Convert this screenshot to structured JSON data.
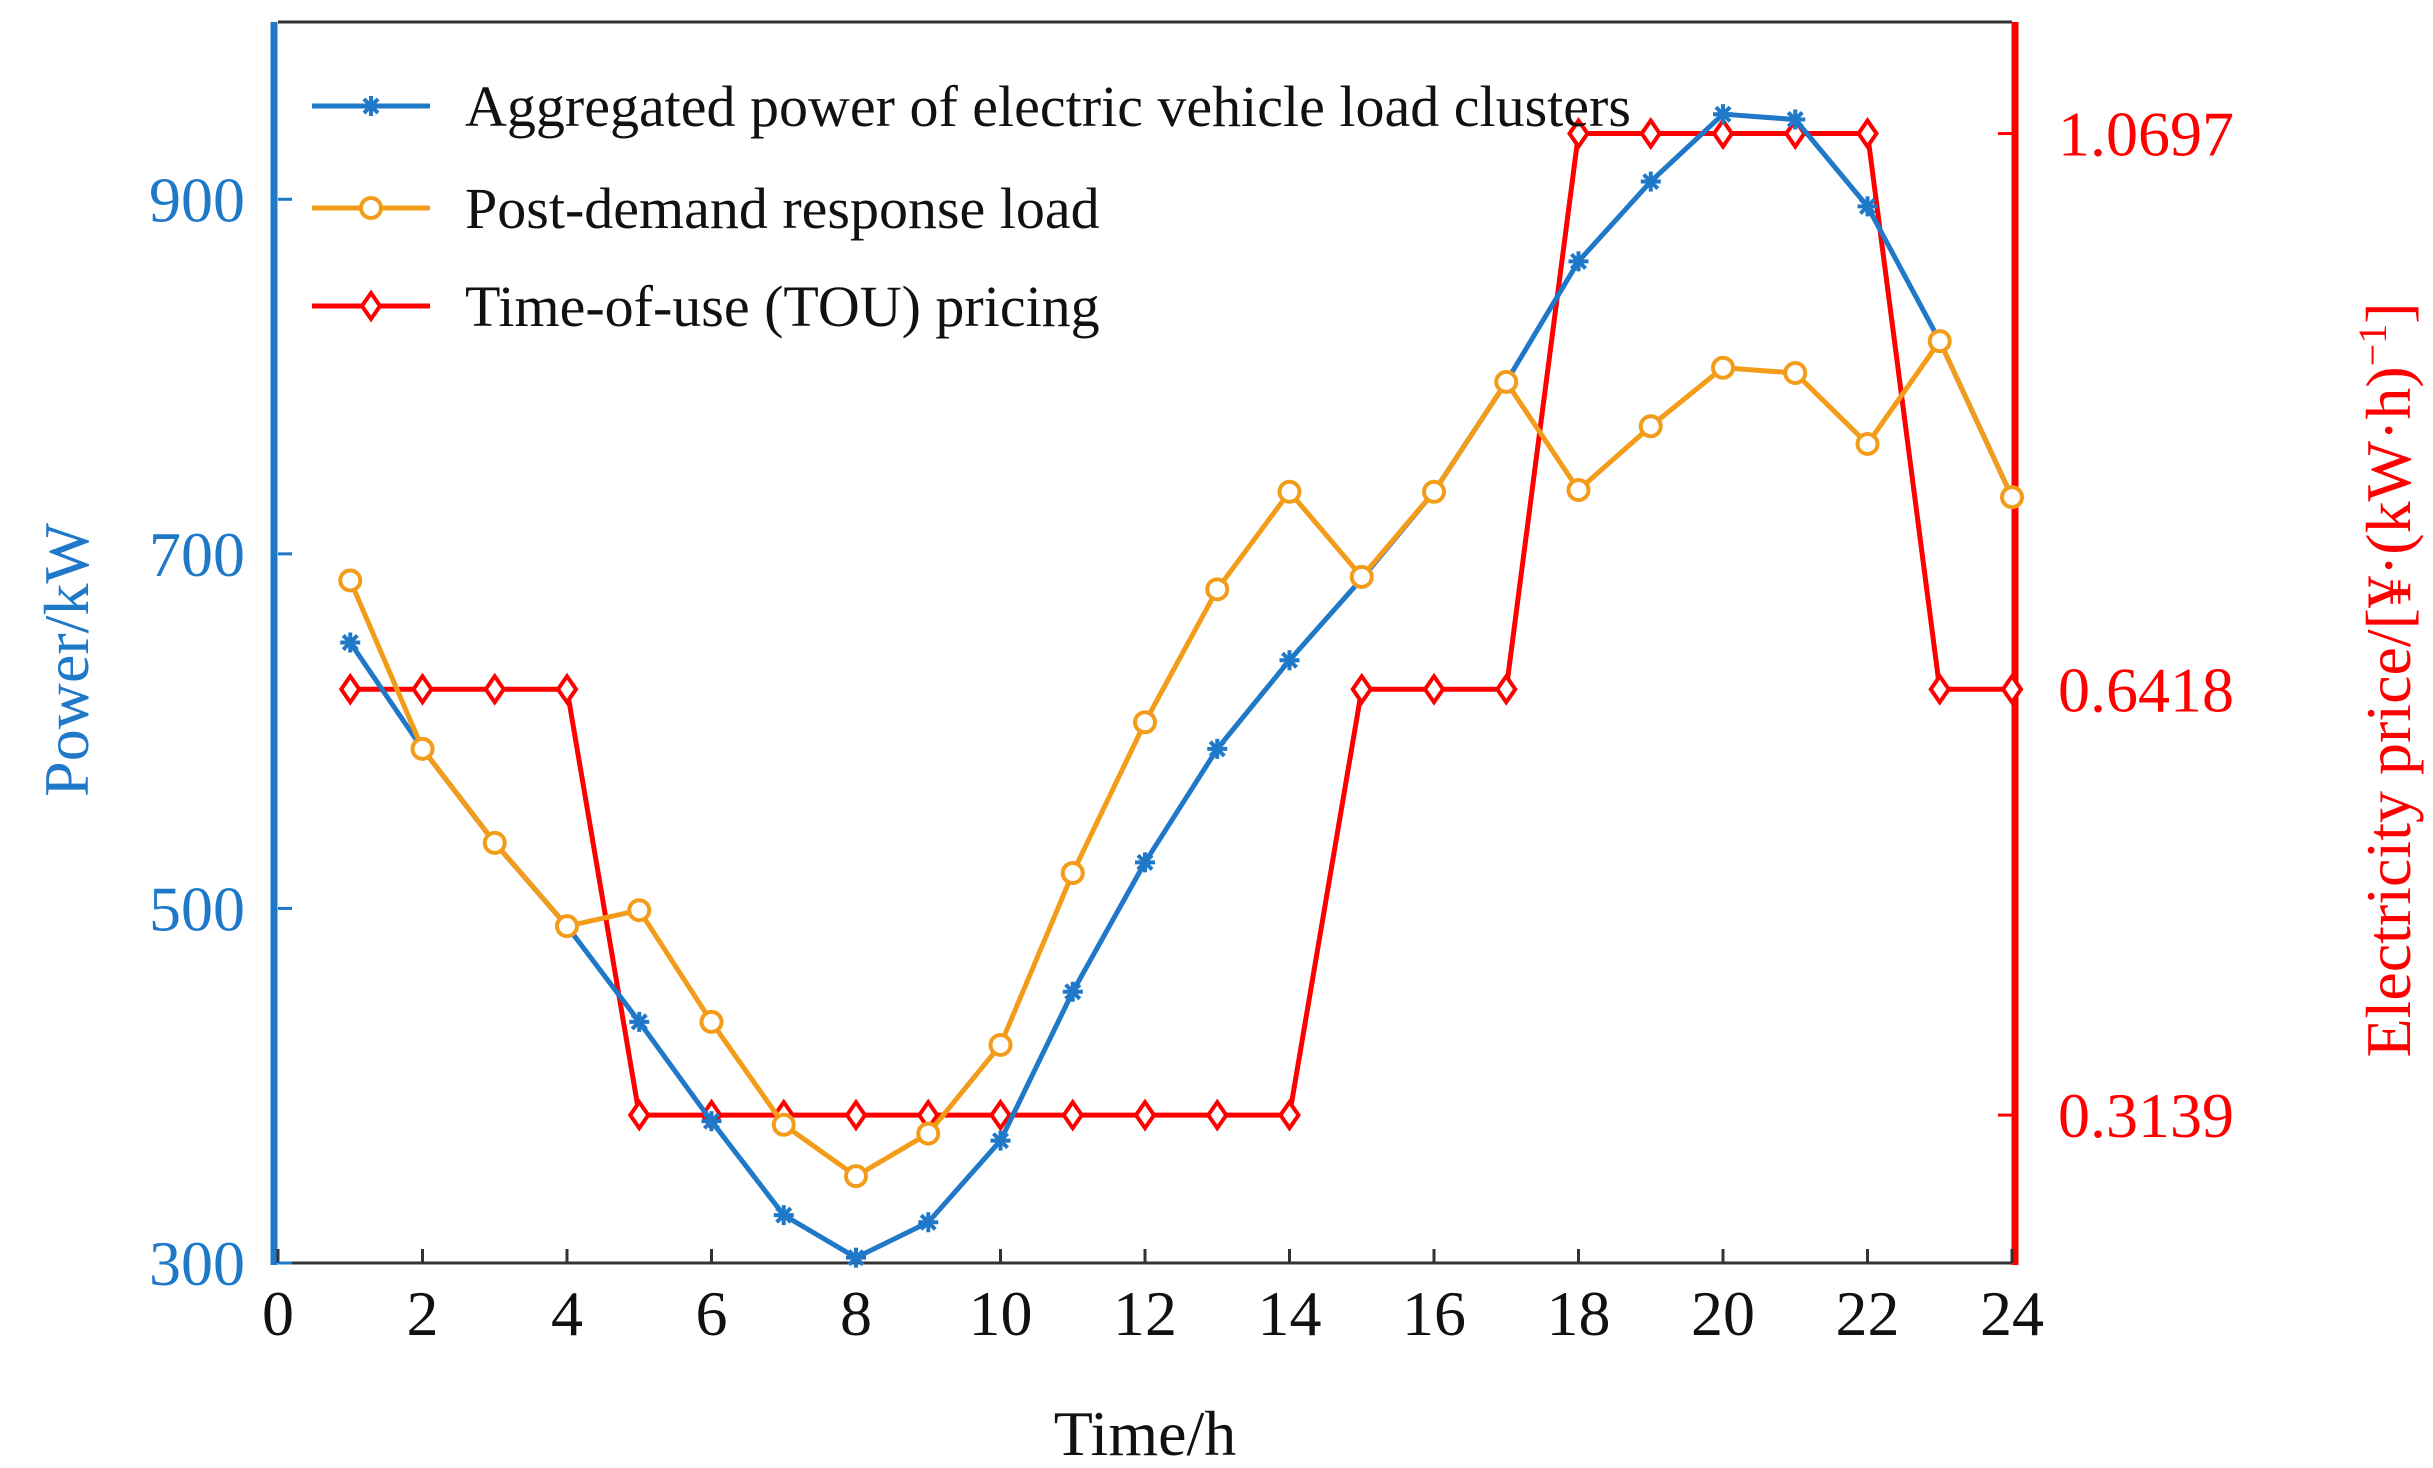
{
  "chart_data": {
    "type": "line",
    "title": "",
    "xlabel": "Time/h",
    "ylabel_left": "Power/kW",
    "ylabel_right": "Electricity price/[¥·(kW·h)⁻¹]",
    "ylabel_right_parts": {
      "main": "Electricity price/[¥·(kW·h)",
      "close": "]",
      "sup": "−1"
    },
    "xlim": [
      0,
      24
    ],
    "ylim_left": [
      300,
      1000
    ],
    "ylim_right": [
      0.2,
      1.1556
    ],
    "x_ticks": [
      "0",
      "2",
      "4",
      "6",
      "8",
      "10",
      "12",
      "14",
      "16",
      "18",
      "20",
      "22",
      "24"
    ],
    "x_tick_values": [
      0,
      2,
      4,
      6,
      8,
      10,
      12,
      14,
      16,
      18,
      20,
      22,
      24
    ],
    "y_left_ticks": [
      "300",
      "500",
      "700",
      "900"
    ],
    "y_left_tick_values": [
      300,
      500,
      700,
      900
    ],
    "y_right_ticks": [
      "0.3139",
      "0.6418",
      "1.0697"
    ],
    "y_right_tick_values": [
      0.3139,
      0.6418,
      1.0697
    ],
    "legend_position": "top-left",
    "x": [
      1,
      2,
      3,
      4,
      5,
      6,
      7,
      8,
      9,
      10,
      11,
      12,
      13,
      14,
      15,
      16,
      17,
      18,
      19,
      20,
      21,
      22,
      23,
      24
    ],
    "series": [
      {
        "name": "Aggregated power of electric vehicle load clusters",
        "axis": "left",
        "color": "#1f78c8",
        "marker": "asterisk",
        "values": [
          650,
          590,
          537,
          490,
          436,
          380,
          327,
          303,
          323,
          369,
          453,
          526,
          590,
          640,
          686,
          735,
          797,
          865,
          910,
          948,
          945,
          896,
          820,
          732
        ]
      },
      {
        "name": "Post-demand response load",
        "axis": "left",
        "color": "#f39c1a",
        "marker": "circle",
        "values": [
          685,
          590,
          537,
          490,
          499,
          436,
          378,
          349,
          373,
          423,
          520,
          605,
          680,
          735,
          687,
          735,
          797,
          736,
          772,
          805,
          802,
          762,
          820,
          732
        ]
      },
      {
        "name": "Time-of-use (TOU) pricing",
        "axis": "right",
        "color": "#ff0000",
        "marker": "diamond",
        "values": [
          0.6418,
          0.6418,
          0.6418,
          0.6418,
          0.3139,
          0.3139,
          0.3139,
          0.3139,
          0.3139,
          0.3139,
          0.3139,
          0.3139,
          0.3139,
          0.3139,
          0.6418,
          0.6418,
          0.6418,
          1.0697,
          1.0697,
          1.0697,
          1.0697,
          1.0697,
          0.6418,
          0.6418
        ]
      }
    ]
  }
}
